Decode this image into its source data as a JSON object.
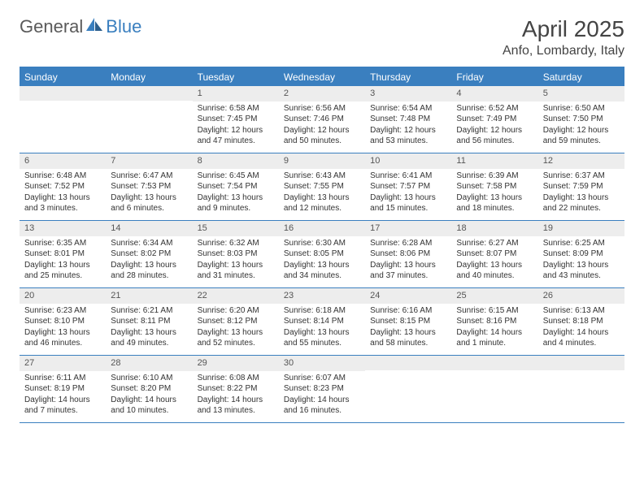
{
  "logo": {
    "text1": "General",
    "text2": "Blue"
  },
  "title": "April 2025",
  "location": "Anfo, Lombardy, Italy",
  "dayHeaders": [
    "Sunday",
    "Monday",
    "Tuesday",
    "Wednesday",
    "Thursday",
    "Friday",
    "Saturday"
  ],
  "colors": {
    "accent": "#3a7fbf",
    "headerText": "#ffffff",
    "daynumBg": "#ededed",
    "bodyText": "#333333",
    "background": "#ffffff"
  },
  "layout": {
    "columns": 7,
    "rows": 5,
    "cell_fontsize": 10,
    "header_fontsize": 12,
    "title_fontsize": 28,
    "location_fontsize": 16
  },
  "weeks": [
    [
      {
        "day": "",
        "sunrise": "",
        "sunset": "",
        "daylight": ""
      },
      {
        "day": "",
        "sunrise": "",
        "sunset": "",
        "daylight": ""
      },
      {
        "day": "1",
        "sunrise": "Sunrise: 6:58 AM",
        "sunset": "Sunset: 7:45 PM",
        "daylight": "Daylight: 12 hours and 47 minutes."
      },
      {
        "day": "2",
        "sunrise": "Sunrise: 6:56 AM",
        "sunset": "Sunset: 7:46 PM",
        "daylight": "Daylight: 12 hours and 50 minutes."
      },
      {
        "day": "3",
        "sunrise": "Sunrise: 6:54 AM",
        "sunset": "Sunset: 7:48 PM",
        "daylight": "Daylight: 12 hours and 53 minutes."
      },
      {
        "day": "4",
        "sunrise": "Sunrise: 6:52 AM",
        "sunset": "Sunset: 7:49 PM",
        "daylight": "Daylight: 12 hours and 56 minutes."
      },
      {
        "day": "5",
        "sunrise": "Sunrise: 6:50 AM",
        "sunset": "Sunset: 7:50 PM",
        "daylight": "Daylight: 12 hours and 59 minutes."
      }
    ],
    [
      {
        "day": "6",
        "sunrise": "Sunrise: 6:48 AM",
        "sunset": "Sunset: 7:52 PM",
        "daylight": "Daylight: 13 hours and 3 minutes."
      },
      {
        "day": "7",
        "sunrise": "Sunrise: 6:47 AM",
        "sunset": "Sunset: 7:53 PM",
        "daylight": "Daylight: 13 hours and 6 minutes."
      },
      {
        "day": "8",
        "sunrise": "Sunrise: 6:45 AM",
        "sunset": "Sunset: 7:54 PM",
        "daylight": "Daylight: 13 hours and 9 minutes."
      },
      {
        "day": "9",
        "sunrise": "Sunrise: 6:43 AM",
        "sunset": "Sunset: 7:55 PM",
        "daylight": "Daylight: 13 hours and 12 minutes."
      },
      {
        "day": "10",
        "sunrise": "Sunrise: 6:41 AM",
        "sunset": "Sunset: 7:57 PM",
        "daylight": "Daylight: 13 hours and 15 minutes."
      },
      {
        "day": "11",
        "sunrise": "Sunrise: 6:39 AM",
        "sunset": "Sunset: 7:58 PM",
        "daylight": "Daylight: 13 hours and 18 minutes."
      },
      {
        "day": "12",
        "sunrise": "Sunrise: 6:37 AM",
        "sunset": "Sunset: 7:59 PM",
        "daylight": "Daylight: 13 hours and 22 minutes."
      }
    ],
    [
      {
        "day": "13",
        "sunrise": "Sunrise: 6:35 AM",
        "sunset": "Sunset: 8:01 PM",
        "daylight": "Daylight: 13 hours and 25 minutes."
      },
      {
        "day": "14",
        "sunrise": "Sunrise: 6:34 AM",
        "sunset": "Sunset: 8:02 PM",
        "daylight": "Daylight: 13 hours and 28 minutes."
      },
      {
        "day": "15",
        "sunrise": "Sunrise: 6:32 AM",
        "sunset": "Sunset: 8:03 PM",
        "daylight": "Daylight: 13 hours and 31 minutes."
      },
      {
        "day": "16",
        "sunrise": "Sunrise: 6:30 AM",
        "sunset": "Sunset: 8:05 PM",
        "daylight": "Daylight: 13 hours and 34 minutes."
      },
      {
        "day": "17",
        "sunrise": "Sunrise: 6:28 AM",
        "sunset": "Sunset: 8:06 PM",
        "daylight": "Daylight: 13 hours and 37 minutes."
      },
      {
        "day": "18",
        "sunrise": "Sunrise: 6:27 AM",
        "sunset": "Sunset: 8:07 PM",
        "daylight": "Daylight: 13 hours and 40 minutes."
      },
      {
        "day": "19",
        "sunrise": "Sunrise: 6:25 AM",
        "sunset": "Sunset: 8:09 PM",
        "daylight": "Daylight: 13 hours and 43 minutes."
      }
    ],
    [
      {
        "day": "20",
        "sunrise": "Sunrise: 6:23 AM",
        "sunset": "Sunset: 8:10 PM",
        "daylight": "Daylight: 13 hours and 46 minutes."
      },
      {
        "day": "21",
        "sunrise": "Sunrise: 6:21 AM",
        "sunset": "Sunset: 8:11 PM",
        "daylight": "Daylight: 13 hours and 49 minutes."
      },
      {
        "day": "22",
        "sunrise": "Sunrise: 6:20 AM",
        "sunset": "Sunset: 8:12 PM",
        "daylight": "Daylight: 13 hours and 52 minutes."
      },
      {
        "day": "23",
        "sunrise": "Sunrise: 6:18 AM",
        "sunset": "Sunset: 8:14 PM",
        "daylight": "Daylight: 13 hours and 55 minutes."
      },
      {
        "day": "24",
        "sunrise": "Sunrise: 6:16 AM",
        "sunset": "Sunset: 8:15 PM",
        "daylight": "Daylight: 13 hours and 58 minutes."
      },
      {
        "day": "25",
        "sunrise": "Sunrise: 6:15 AM",
        "sunset": "Sunset: 8:16 PM",
        "daylight": "Daylight: 14 hours and 1 minute."
      },
      {
        "day": "26",
        "sunrise": "Sunrise: 6:13 AM",
        "sunset": "Sunset: 8:18 PM",
        "daylight": "Daylight: 14 hours and 4 minutes."
      }
    ],
    [
      {
        "day": "27",
        "sunrise": "Sunrise: 6:11 AM",
        "sunset": "Sunset: 8:19 PM",
        "daylight": "Daylight: 14 hours and 7 minutes."
      },
      {
        "day": "28",
        "sunrise": "Sunrise: 6:10 AM",
        "sunset": "Sunset: 8:20 PM",
        "daylight": "Daylight: 14 hours and 10 minutes."
      },
      {
        "day": "29",
        "sunrise": "Sunrise: 6:08 AM",
        "sunset": "Sunset: 8:22 PM",
        "daylight": "Daylight: 14 hours and 13 minutes."
      },
      {
        "day": "30",
        "sunrise": "Sunrise: 6:07 AM",
        "sunset": "Sunset: 8:23 PM",
        "daylight": "Daylight: 14 hours and 16 minutes."
      },
      {
        "day": "",
        "sunrise": "",
        "sunset": "",
        "daylight": ""
      },
      {
        "day": "",
        "sunrise": "",
        "sunset": "",
        "daylight": ""
      },
      {
        "day": "",
        "sunrise": "",
        "sunset": "",
        "daylight": ""
      }
    ]
  ]
}
